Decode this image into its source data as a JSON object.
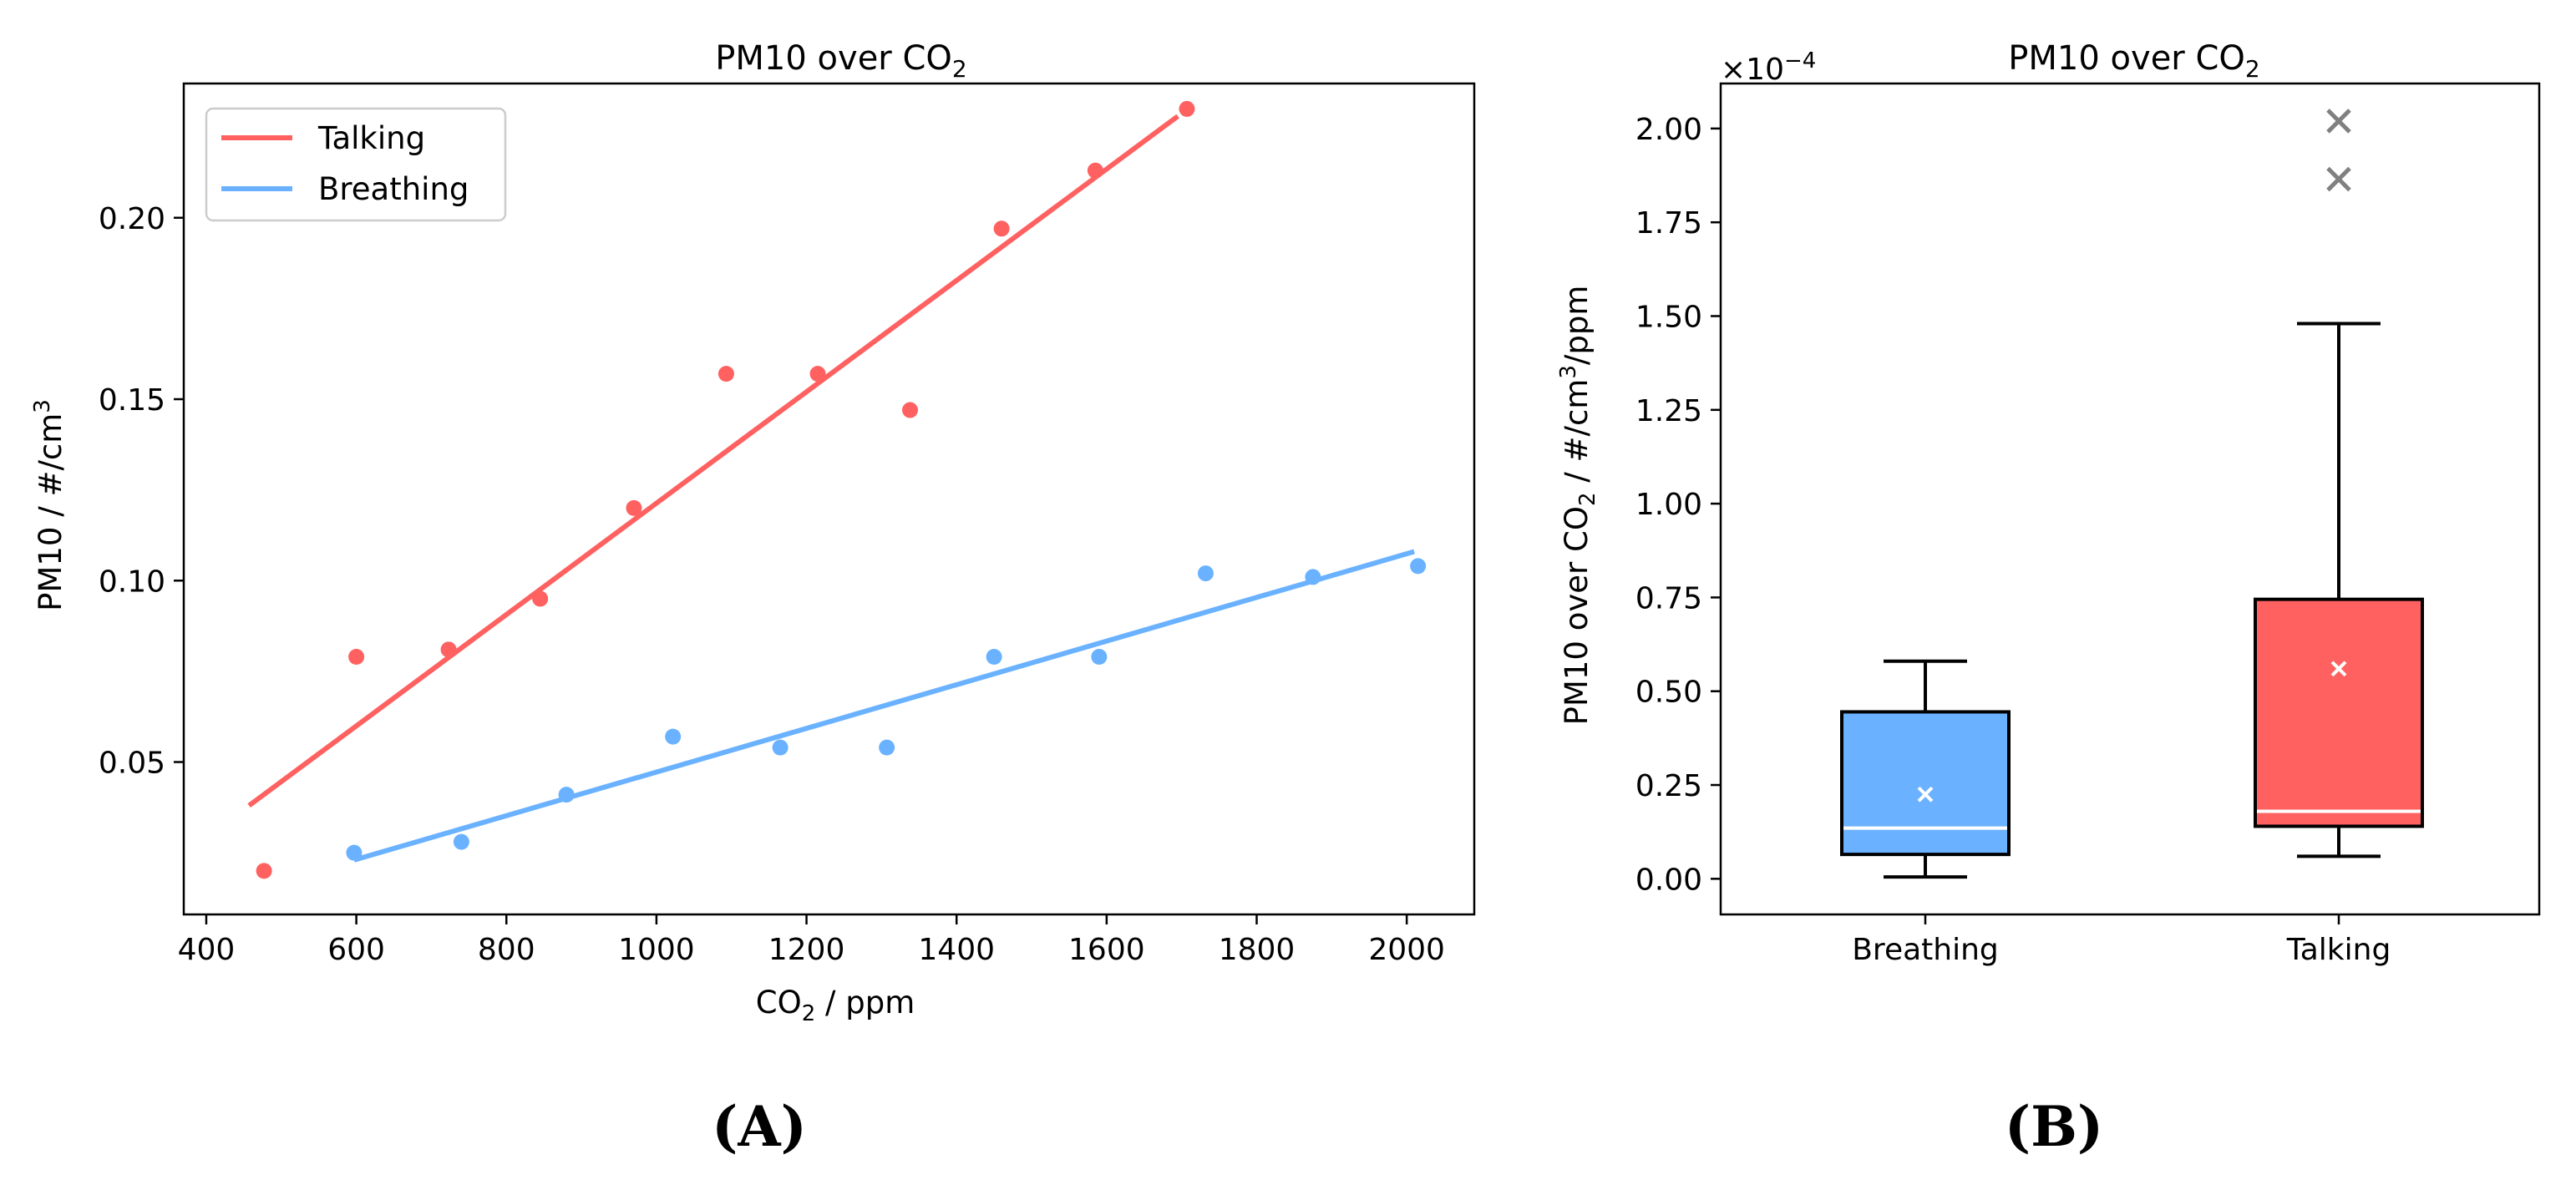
{
  "colors": {
    "talking": "#ff6161",
    "breathing": "#6ab2ff",
    "outlier": "#808080"
  },
  "panel_labels": {
    "a": "(A)",
    "b": "(B)"
  },
  "chart_data": [
    {
      "type": "scatter",
      "title": {
        "main": "PM10 over CO",
        "sub": "2"
      },
      "xlabel": {
        "pre": "CO",
        "sub": "2",
        "post": " / ppm"
      },
      "ylabel": {
        "pre": "PM10 / #/cm",
        "sup": "3"
      },
      "xlim": [
        370,
        2090
      ],
      "ylim": [
        0.008,
        0.237
      ],
      "xticks": [
        400,
        600,
        800,
        1000,
        1200,
        1400,
        1600,
        1800,
        2000
      ],
      "xtick_labels": [
        "400",
        "600",
        "800",
        "1000",
        "1200",
        "1400",
        "1600",
        "1800",
        "2000"
      ],
      "yticks": [
        0.05,
        0.1,
        0.15,
        0.2
      ],
      "ytick_labels": [
        "0.05",
        "0.10",
        "0.15",
        "0.20"
      ],
      "legend": {
        "position": "top-left",
        "entries": [
          "Talking",
          "Breathing"
        ]
      },
      "series": [
        {
          "name": "Talking",
          "color": "#ff6161",
          "x": [
            477,
            600,
            723,
            845,
            970,
            1093,
            1215,
            1338,
            1460,
            1585,
            1707
          ],
          "y": [
            0.02,
            0.079,
            0.081,
            0.095,
            0.12,
            0.157,
            0.157,
            0.147,
            0.197,
            0.213,
            0.23
          ],
          "fit": {
            "x": [
              457,
              1695
            ],
            "y": [
              0.038,
              0.228
            ]
          }
        },
        {
          "name": "Breathing",
          "color": "#6ab2ff",
          "x": [
            597,
            740,
            880,
            1022,
            1165,
            1307,
            1450,
            1590,
            1732,
            1875,
            2015
          ],
          "y": [
            0.025,
            0.028,
            0.041,
            0.057,
            0.054,
            0.054,
            0.079,
            0.079,
            0.102,
            0.101,
            0.104
          ],
          "fit": {
            "x": [
              597,
              2010
            ],
            "y": [
              0.023,
              0.108
            ]
          }
        }
      ]
    },
    {
      "type": "box",
      "title": {
        "main": "PM10 over CO",
        "sub": "2"
      },
      "ylabel": {
        "pre": "PM10 over CO",
        "sub": "2",
        "mid": " / #/cm",
        "sup": "3",
        "post": "/ppm"
      },
      "offset_label": {
        "pre": "×10",
        "sup": "−4"
      },
      "ylim": [
        -0.095,
        2.12
      ],
      "yticks": [
        0,
        0.25,
        0.5,
        0.75,
        1.0,
        1.25,
        1.5,
        1.75,
        2.0
      ],
      "ytick_labels": [
        "0.00",
        "0.25",
        "0.50",
        "0.75",
        "1.00",
        "1.25",
        "1.50",
        "1.75",
        "2.00"
      ],
      "categories": [
        "Breathing",
        "Talking"
      ],
      "boxes": [
        {
          "name": "Breathing",
          "color": "#6ab2ff",
          "whisker_low": 0.005,
          "q1": 0.065,
          "median": 0.135,
          "q3": 0.445,
          "whisker_high": 0.58,
          "mean": 0.225,
          "outliers": []
        },
        {
          "name": "Talking",
          "color": "#ff6161",
          "whisker_low": 0.06,
          "q1": 0.14,
          "median": 0.18,
          "q3": 0.745,
          "whisker_high": 1.48,
          "mean": 0.56,
          "outliers": [
            2.02,
            1.865
          ]
        }
      ]
    }
  ]
}
